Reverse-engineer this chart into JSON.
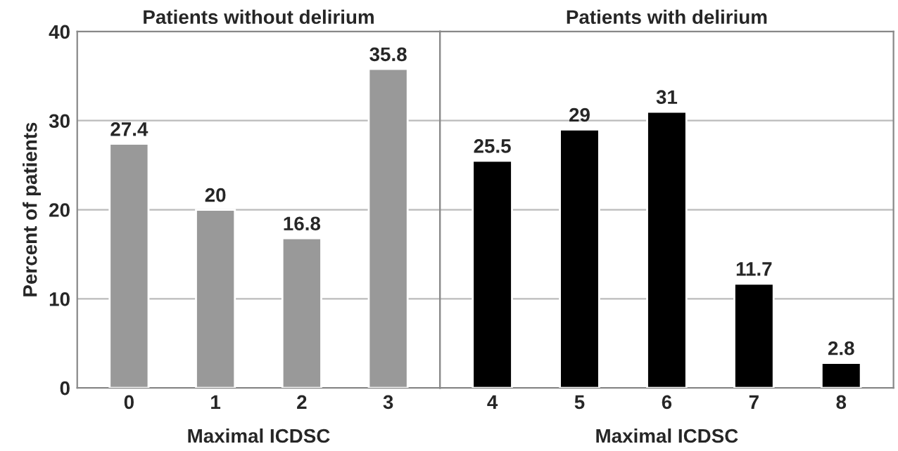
{
  "chart_data": [
    {
      "type": "bar",
      "title": "Patients without delirium",
      "xlabel": "Maximal ICDSC",
      "ylabel": "Percent of patients",
      "categories": [
        "0",
        "1",
        "2",
        "3"
      ],
      "values": [
        27.4,
        20,
        16.8,
        35.8
      ],
      "color": "#999999",
      "ylim": [
        0,
        40
      ],
      "yticks": [
        0,
        10,
        20,
        30,
        40
      ],
      "grid": "y",
      "data_labels": true
    },
    {
      "type": "bar",
      "title": "Patients with delirium",
      "xlabel": "Maximal ICDSC",
      "categories": [
        "4",
        "5",
        "6",
        "7",
        "8"
      ],
      "values": [
        25.5,
        29,
        31,
        11.7,
        2.8
      ],
      "color": "#000000",
      "ylim": [
        0,
        40
      ],
      "yticks": [
        0,
        10,
        20,
        30,
        40
      ],
      "grid": "y",
      "data_labels": true,
      "tick_labels": "x"
    }
  ]
}
